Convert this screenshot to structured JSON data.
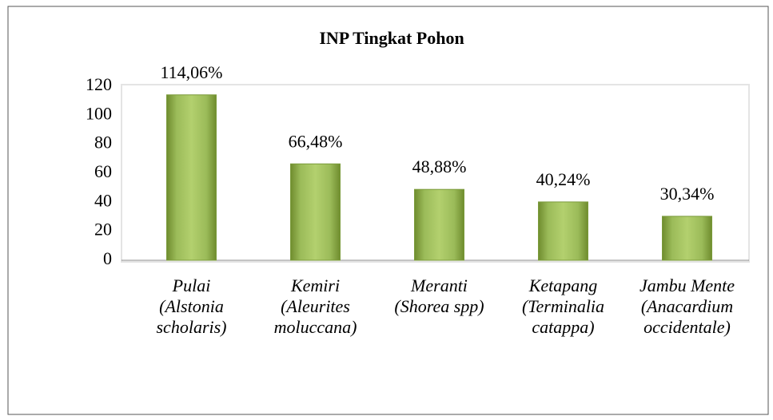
{
  "chart_data": {
    "type": "bar",
    "title": "INP Tingkat Pohon",
    "categories": [
      [
        "Pulai",
        "(Alstonia",
        "scholaris)"
      ],
      [
        "Kemiri",
        "(Aleurites",
        "moluccana)"
      ],
      [
        "Meranti",
        "(Shorea spp)"
      ],
      [
        "Ketapang",
        "(Terminalia",
        "catappa)"
      ],
      [
        "Jambu Mente",
        "(Anacardium",
        "occidentale)"
      ]
    ],
    "values": [
      114.06,
      66.48,
      48.88,
      40.24,
      30.34
    ],
    "value_labels": [
      "114,06%",
      "66,48%",
      "48,88%",
      "40,24%",
      "30,34%"
    ],
    "color": "#9bbb59",
    "ylim": [
      0,
      120
    ],
    "yticks": [
      0,
      20,
      40,
      60,
      80,
      100,
      120
    ],
    "grid": false
  }
}
